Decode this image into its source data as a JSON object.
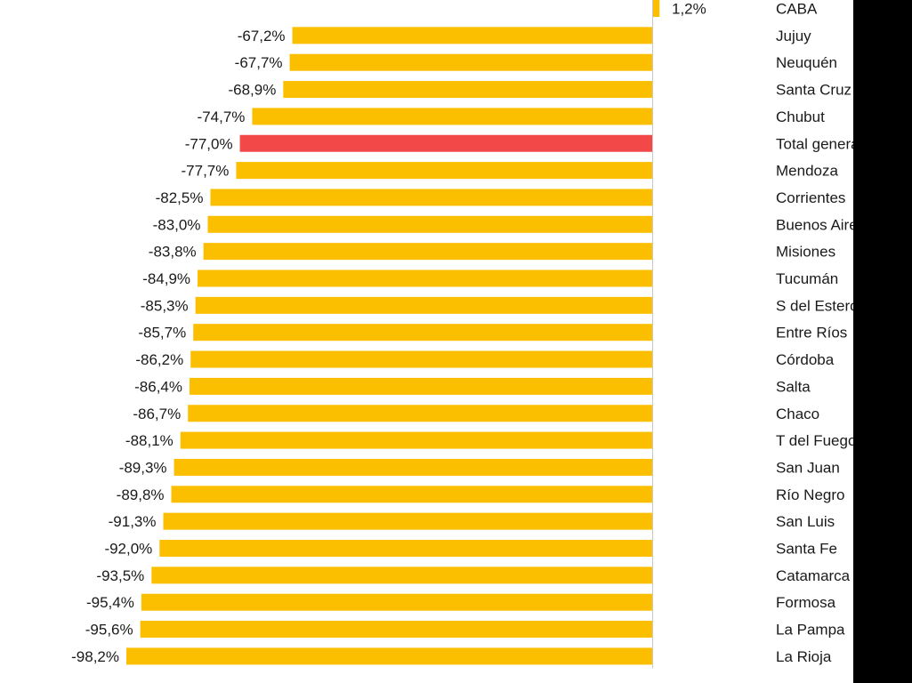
{
  "chart_data": {
    "type": "bar",
    "orientation": "horizontal",
    "title": "",
    "xlabel": "",
    "ylabel": "",
    "xlim": [
      -100,
      5
    ],
    "grid": false,
    "legend": "none",
    "highlight_category": "Total general",
    "colors": {
      "bar": "#fbbf00",
      "highlight": "#f24848",
      "axis": "#c8c8c8",
      "text": "#1a1a1a"
    },
    "categories": [
      "CABA",
      "Jujuy",
      "Neuquén",
      "Santa Cruz",
      "Chubut",
      "Total general",
      "Mendoza",
      "Corrientes",
      "Buenos Aires",
      "Misiones",
      "Tucumán",
      "S del Estero",
      "Entre Ríos",
      "Córdoba",
      "Salta",
      "Chaco",
      "T del Fuego",
      "San Juan",
      "Río Negro",
      "San Luis",
      "Santa Fe",
      "Catamarca",
      "Formosa",
      "La Pampa",
      "La Rioja"
    ],
    "values": [
      1.2,
      -67.2,
      -67.7,
      -68.9,
      -74.7,
      -77.0,
      -77.7,
      -82.5,
      -83.0,
      -83.8,
      -84.9,
      -85.3,
      -85.7,
      -86.2,
      -86.4,
      -86.7,
      -88.1,
      -89.3,
      -89.8,
      -91.3,
      -92.0,
      -93.5,
      -95.4,
      -95.6,
      -98.2
    ],
    "data_labels": [
      "1,2%",
      "-67,2%",
      "-67,7%",
      "-68,9%",
      "-74,7%",
      "-77,0%",
      "-77,7%",
      "-82,5%",
      "-83,0%",
      "-83,8%",
      "-84,9%",
      "-85,3%",
      "-85,7%",
      "-86,2%",
      "-86,4%",
      "-86,7%",
      "-88,1%",
      "-89,3%",
      "-89,8%",
      "-91,3%",
      "-92,0%",
      "-93,5%",
      "-95,4%",
      "-95,6%",
      "-98,2%"
    ]
  }
}
